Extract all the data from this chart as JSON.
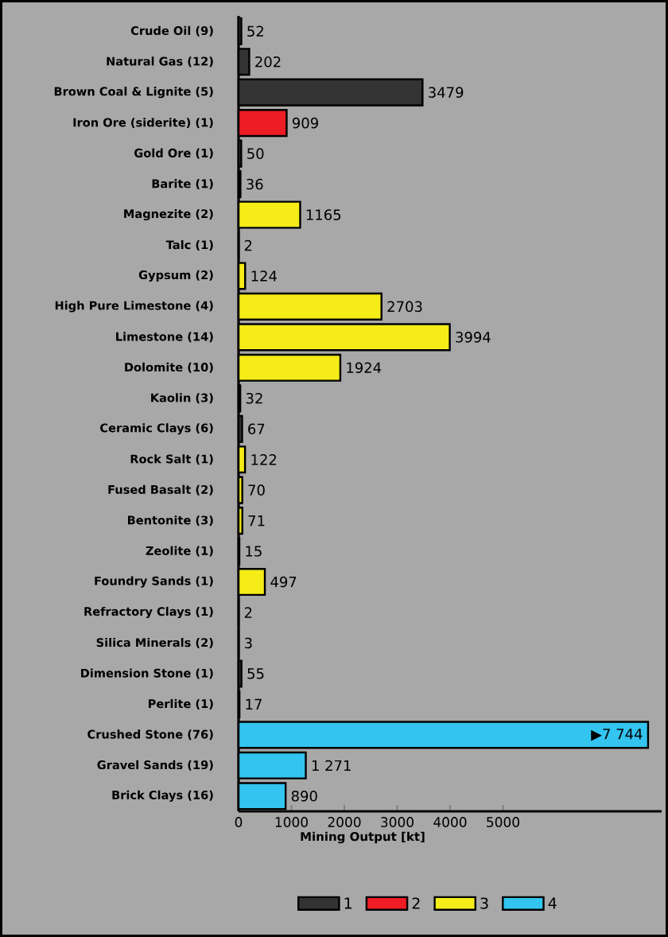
{
  "chart_data": {
    "type": "bar",
    "orientation": "horizontal",
    "xlabel": "Mining Output [kt]",
    "categories": [
      "Crude Oil (9)",
      "Natural Gas (12)",
      "Brown Coal & Lignite (5)",
      "Iron Ore (siderite) (1)",
      "Gold Ore (1)",
      "Barite (1)",
      "Magnezite (2)",
      "Talc (1)",
      "Gypsum (2)",
      "High Pure Limestone (4)",
      "Limestone (14)",
      "Dolomite (10)",
      "Kaolin (3)",
      "Ceramic Clays (6)",
      "Rock Salt (1)",
      "Fused Basalt (2)",
      "Bentonite (3)",
      "Zeolite (1)",
      "Foundry Sands (1)",
      "Refractory Clays (1)",
      "Silica Minerals (2)",
      "Dimension Stone (1)",
      "Perlite (1)",
      "Crushed Stone (76)",
      "Gravel Sands (19)",
      "Brick Clays (16)"
    ],
    "series": [
      {
        "name": "1",
        "color": "#333333",
        "values": [
          52,
          202,
          3479,
          null,
          50,
          36,
          null,
          null,
          null,
          null,
          null,
          null,
          32,
          67,
          null,
          null,
          null,
          null,
          null,
          null,
          null,
          55,
          null,
          null,
          null,
          null
        ],
        "value_labels": [
          "52",
          "202",
          "3479",
          null,
          "50",
          "36",
          null,
          null,
          null,
          null,
          null,
          null,
          "32",
          "67",
          null,
          null,
          null,
          null,
          null,
          null,
          null,
          "55",
          null,
          null,
          null,
          null
        ]
      },
      {
        "name": "2",
        "color": "#ee1c24",
        "values": [
          null,
          null,
          null,
          909,
          null,
          null,
          null,
          null,
          null,
          null,
          null,
          null,
          null,
          null,
          null,
          null,
          null,
          null,
          null,
          null,
          null,
          null,
          null,
          null,
          null,
          null
        ],
        "value_labels": [
          null,
          null,
          null,
          "909",
          null,
          null,
          null,
          null,
          null,
          null,
          null,
          null,
          null,
          null,
          null,
          null,
          null,
          null,
          null,
          null,
          null,
          null,
          null,
          null,
          null,
          null
        ]
      },
      {
        "name": "3",
        "color": "#f5ec18",
        "values": [
          null,
          null,
          null,
          null,
          null,
          null,
          1165,
          2,
          124,
          2703,
          3994,
          1924,
          null,
          null,
          122,
          70,
          71,
          15,
          497,
          2,
          3,
          null,
          17,
          null,
          null,
          null
        ],
        "value_labels": [
          null,
          null,
          null,
          null,
          null,
          null,
          "1165",
          "2",
          "124",
          "2703",
          "3994",
          "1924",
          null,
          null,
          "122",
          "70",
          "71",
          "15",
          "497",
          "2",
          "3",
          null,
          "17",
          null,
          null,
          null
        ]
      },
      {
        "name": "4",
        "color": "#33c4f0",
        "values": [
          null,
          null,
          null,
          null,
          null,
          null,
          null,
          null,
          null,
          null,
          null,
          null,
          null,
          null,
          null,
          null,
          null,
          null,
          null,
          null,
          null,
          null,
          null,
          7744,
          1271,
          890
        ],
        "value_labels": [
          null,
          null,
          null,
          null,
          null,
          null,
          null,
          null,
          null,
          null,
          null,
          null,
          null,
          null,
          null,
          null,
          null,
          null,
          null,
          null,
          null,
          null,
          null,
          "▶7 744",
          "1 271",
          "890"
        ]
      }
    ],
    "xlim": [
      0,
      8000
    ],
    "xticks": [
      0,
      1000,
      2000,
      3000,
      4000,
      5000
    ],
    "grid": false,
    "legend": "bottom"
  }
}
